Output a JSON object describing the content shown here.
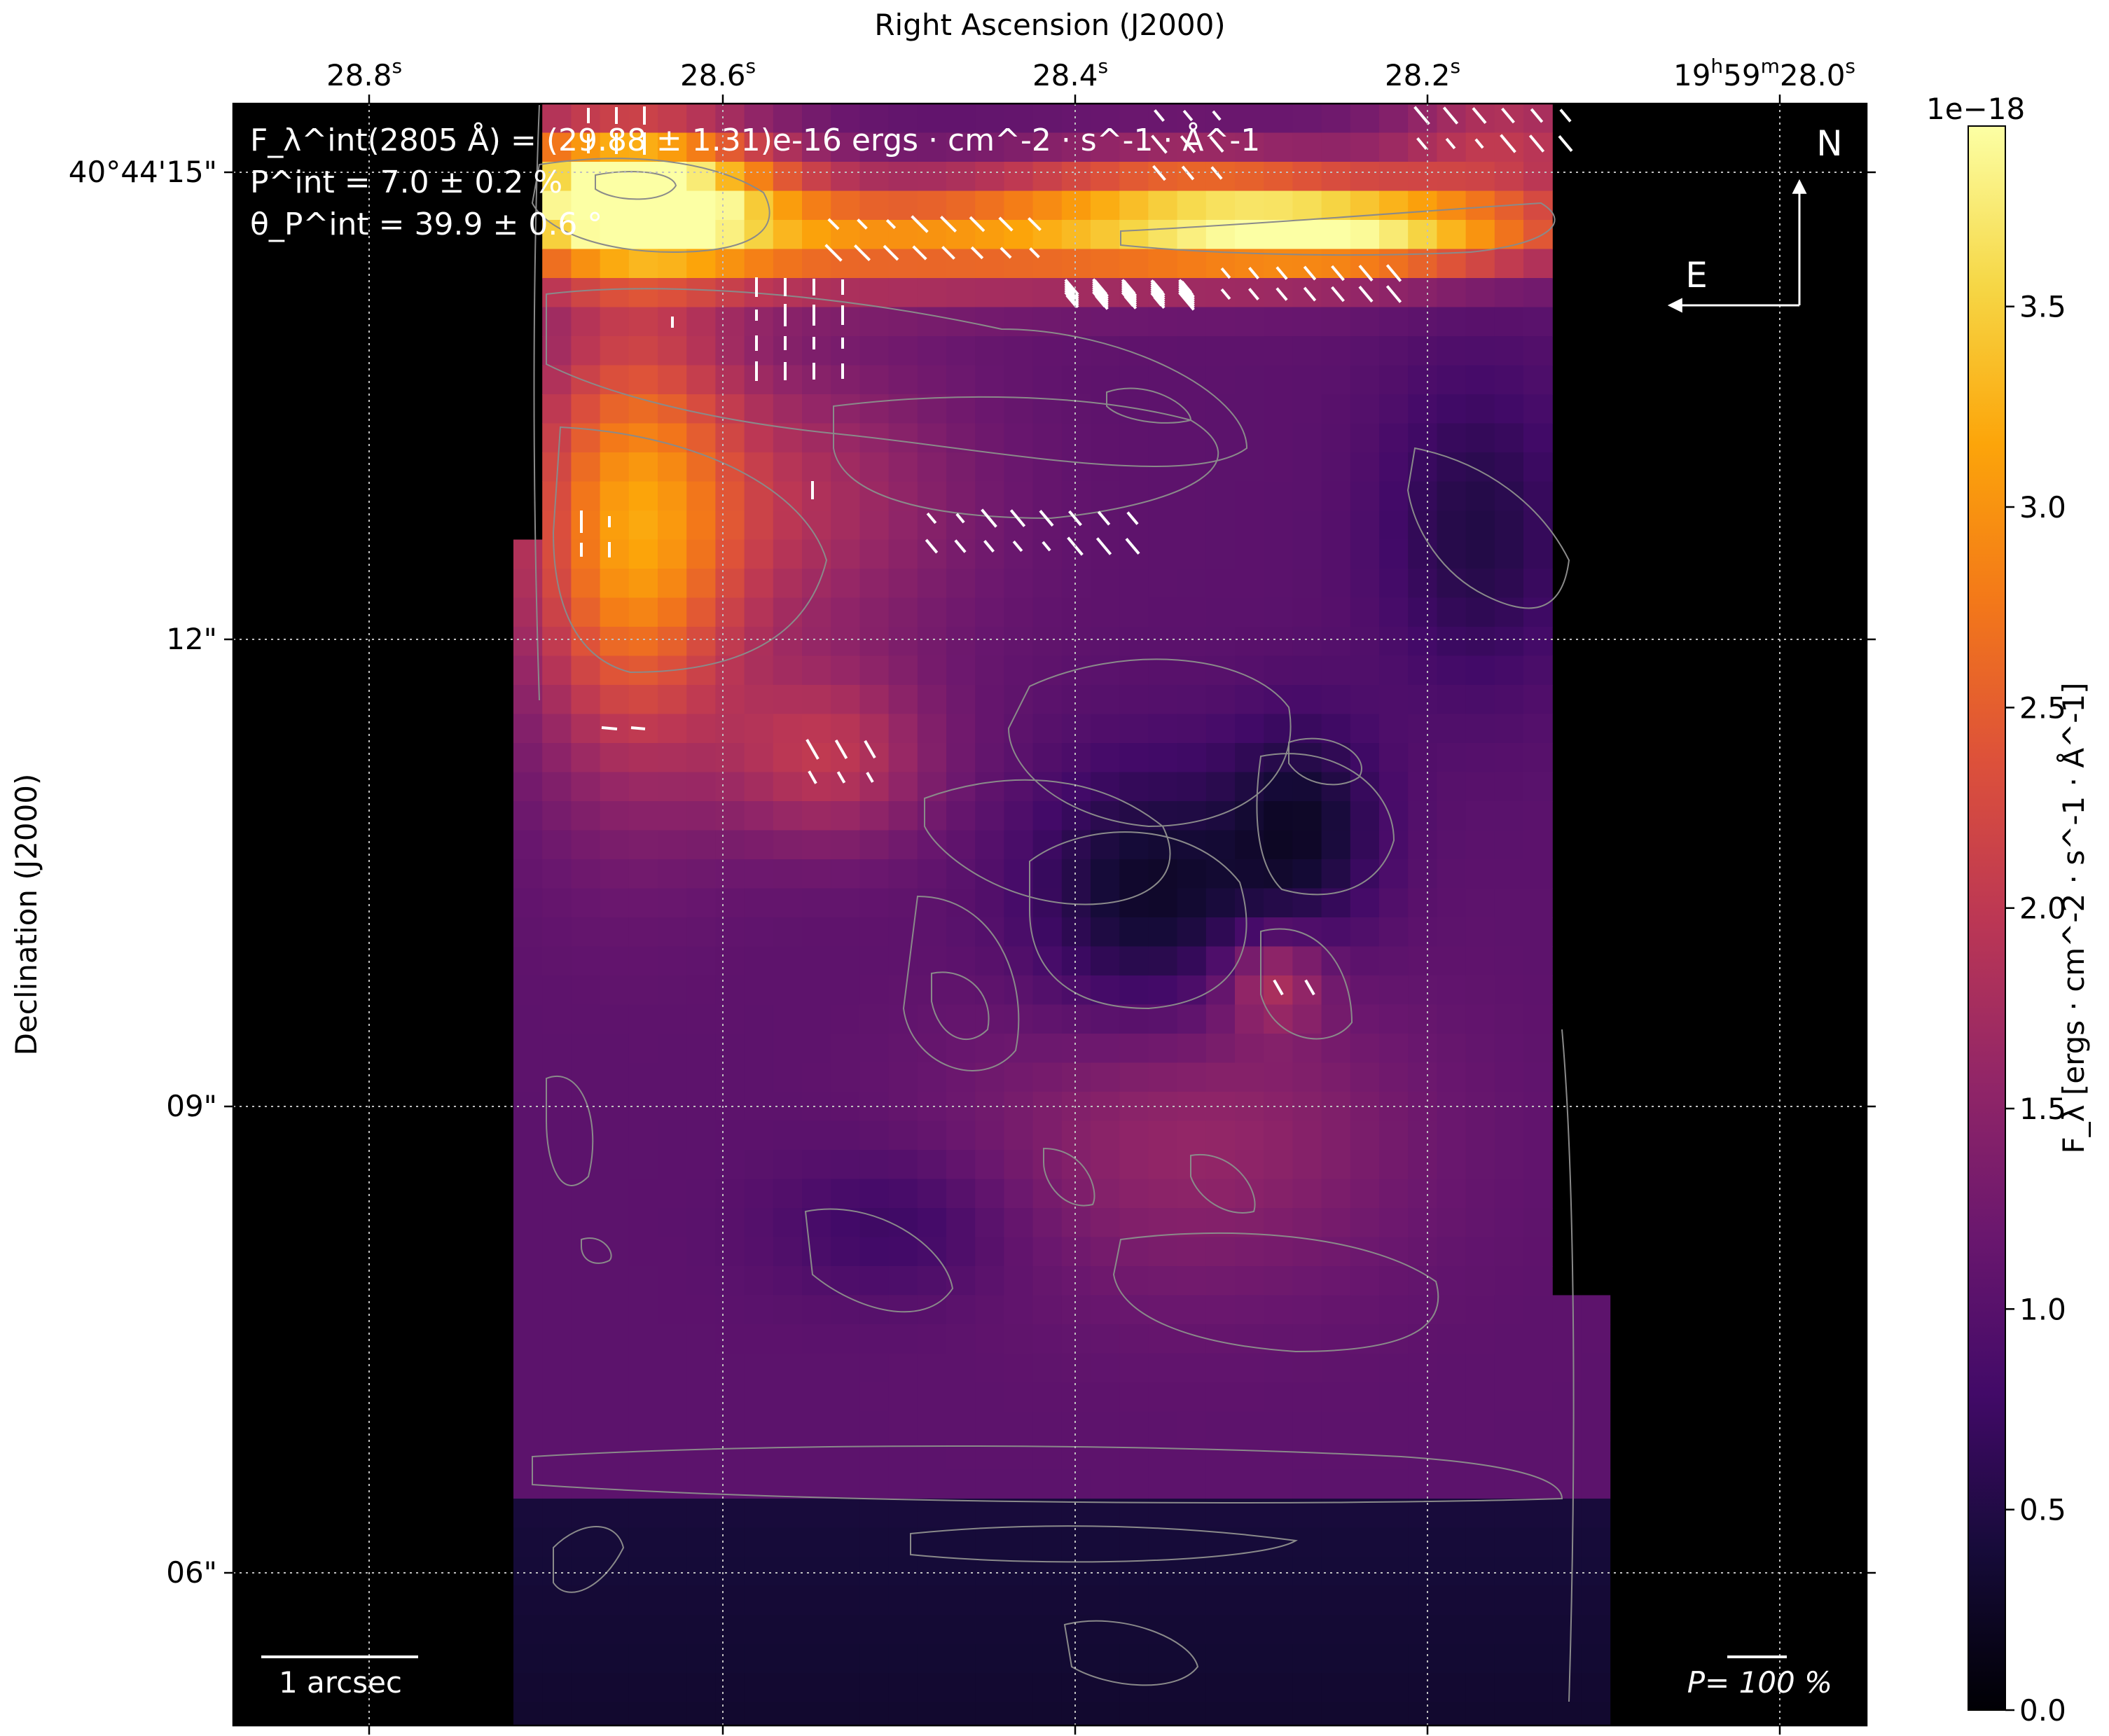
{
  "chart_data": {
    "type": "heatmap",
    "title": "",
    "xlabel": "Right Ascension (J2000)",
    "ylabel": "Declination (J2000)",
    "x_ticks": [
      {
        "main": "28.8",
        "sup": "s"
      },
      {
        "main": "28.6",
        "sup": "s"
      },
      {
        "main": "28.4",
        "sup": "s"
      },
      {
        "main": "28.2",
        "sup": "s"
      },
      {
        "main": "19h59m28.0s",
        "display": [
          "19",
          "h",
          "59",
          "m",
          "28.0",
          "s"
        ]
      }
    ],
    "y_ticks": [
      "40°44'15\"",
      "12\"",
      "09\"",
      "06\""
    ],
    "colormap": "inferno",
    "colorbar": {
      "label": "F_λ [ergs · cm^-2 · s^-1 · Å^-1]",
      "scale_label": "1e−18",
      "ticks": [
        "0.0",
        "0.5",
        "1.0",
        "1.5",
        "2.0",
        "2.5",
        "3.0",
        "3.5"
      ],
      "range": [
        0.0,
        3.95
      ]
    },
    "annotations": {
      "flux_line": "F_λ^int(2805 Å) = (29.88 ± 1.31)e-16 ergs · cm^-2 · s^-1 · Å^-1",
      "p_line": "P^int = 7.0 ± 0.2 %",
      "theta_line": "θ_P^int = 39.9 ± 0.6 °",
      "compass_north": "N",
      "compass_east": "E",
      "scale_bar": "1 arcsec",
      "pol_scale": "P= 100 %"
    },
    "grid": true
  }
}
